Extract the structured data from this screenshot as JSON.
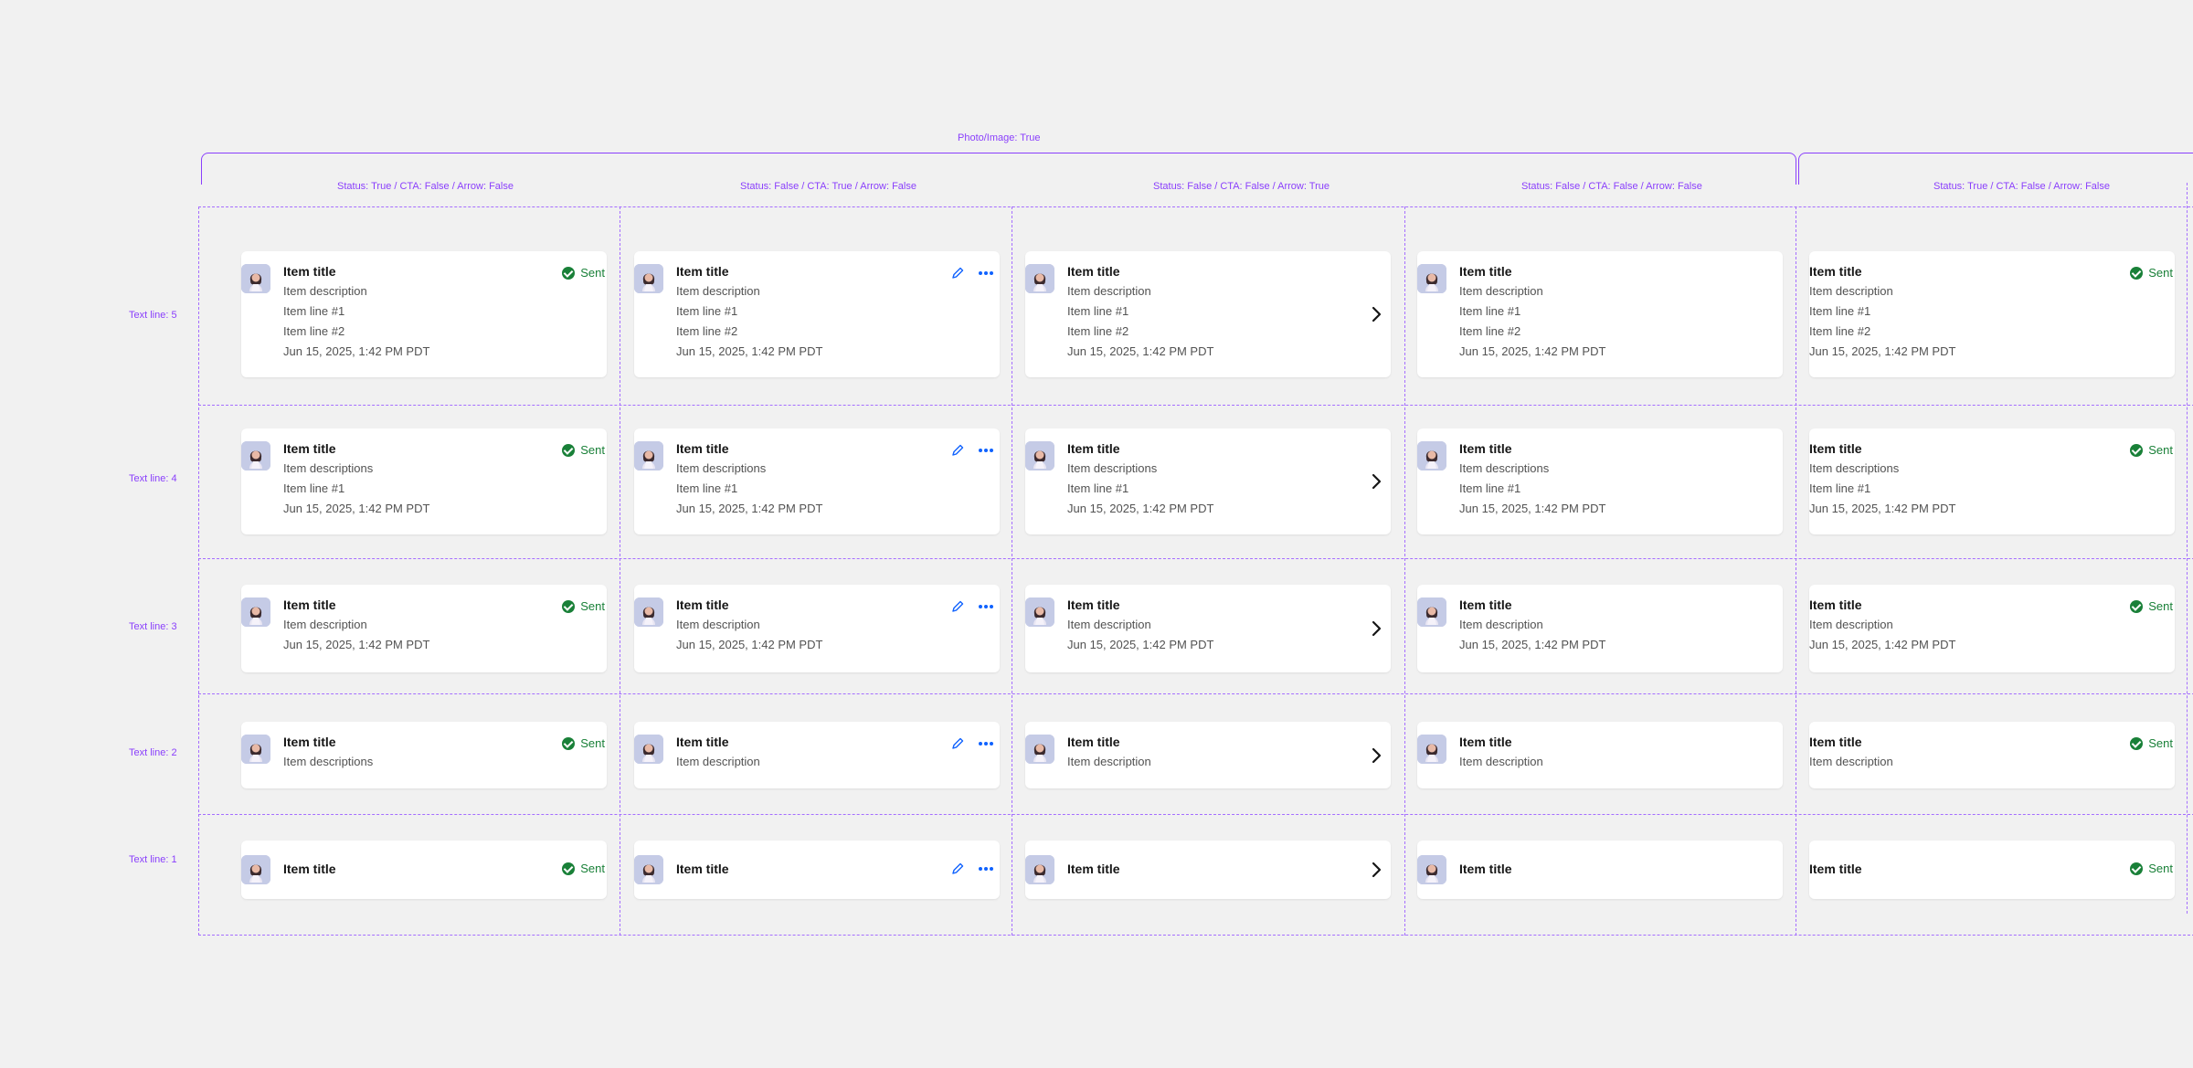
{
  "group_label": "Photo/Image: True",
  "columns": [
    "Status: True / CTA: False / Arrow: False",
    "Status: False / CTA: True / Arrow: False",
    "Status: False / CTA: False / Arrow: True",
    "Status: False / CTA: False / Arrow: False",
    "Status: True / CTA: False / Arrow: False"
  ],
  "rows": [
    "Text line: 5",
    "Text line: 4",
    "Text line: 3",
    "Text line: 2",
    "Text line: 1"
  ],
  "item": {
    "title": "Item title",
    "description": "Item description",
    "descriptions": "Item descriptions",
    "line1": "Item line #1",
    "line2": "Item line #2",
    "date": "Jun 15, 2025, 1:42 PM PDT",
    "status": "Sent"
  },
  "colors": {
    "annotation": "#8a3ffc",
    "success": "#198038",
    "cta": "#0f62fe"
  }
}
